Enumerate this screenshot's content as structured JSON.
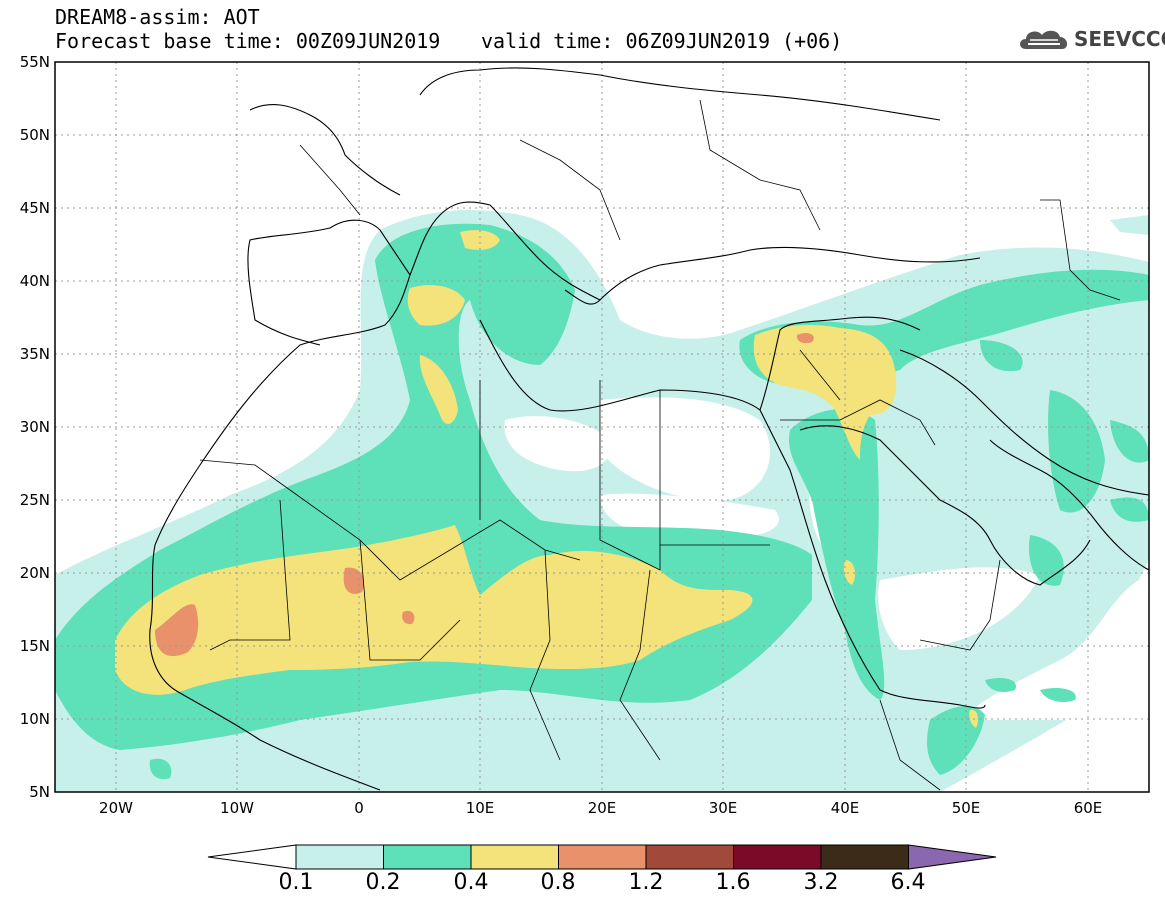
{
  "header": {
    "title": "DREAM8-assim: AOT",
    "base_time": "Forecast base time: 00Z09JUN2019",
    "valid_time": "valid time: 06Z09JUN2019 (+06)",
    "logo_text": "SEEVCCC"
  },
  "map": {
    "projection": "lat-lon",
    "lon_range": [
      -25,
      65
    ],
    "lat_range": [
      5,
      55
    ],
    "gridlines": "dotted"
  },
  "axes": {
    "lat_labels": [
      "55N",
      "50N",
      "45N",
      "40N",
      "35N",
      "30N",
      "25N",
      "20N",
      "15N",
      "10N",
      "5N"
    ],
    "lon_labels": [
      "20W",
      "10W",
      "0",
      "10E",
      "20E",
      "30E",
      "40E",
      "50E",
      "60E"
    ]
  },
  "colorbar": {
    "labels": [
      "0.1",
      "0.2",
      "0.4",
      "0.8",
      "1.2",
      "1.6",
      "3.2",
      "6.4"
    ],
    "colors": [
      "#ffffff",
      "#c7f0ea",
      "#5ee0b9",
      "#f4e27a",
      "#e9916a",
      "#a24a3a",
      "#7a0a28",
      "#3d2b1a",
      "#8a67ae"
    ]
  }
}
